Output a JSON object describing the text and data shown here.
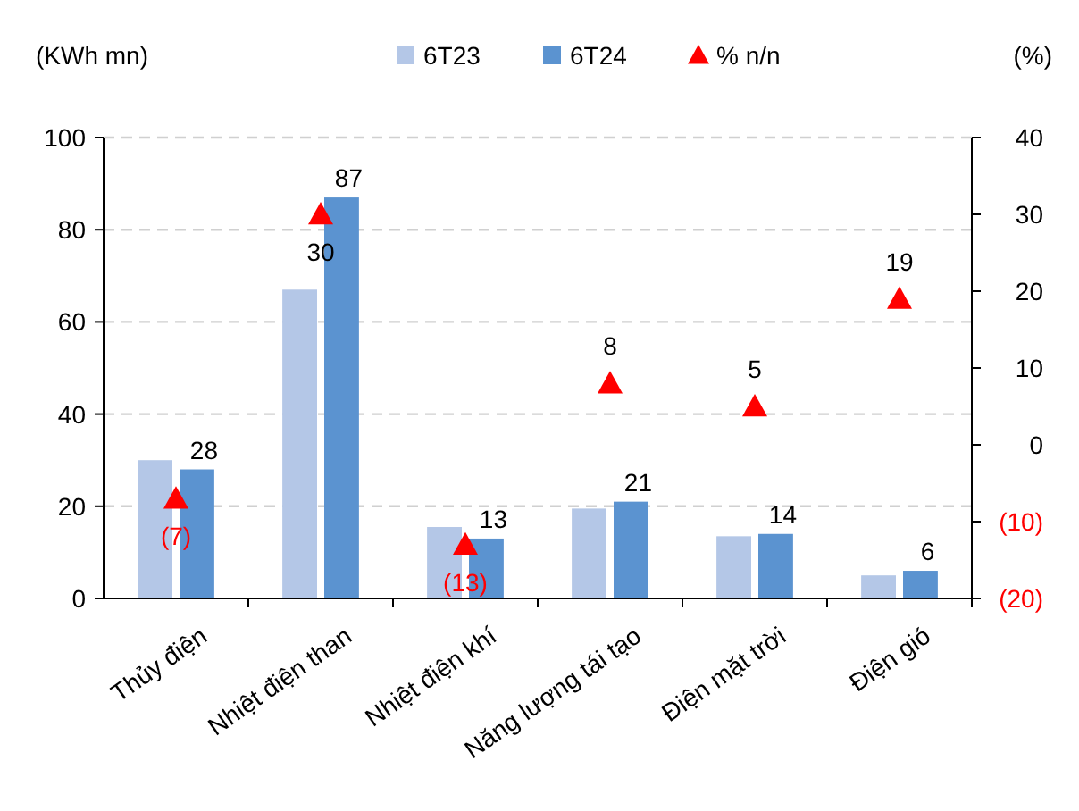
{
  "chart_data": {
    "type": "bar",
    "ylabel": "(KWh mn)",
    "y2label": "(%)",
    "categories": [
      "Thủy điện",
      "Nhiệt điện than",
      "Nhiệt điện khí",
      "Năng lượng tái tạo",
      "Điện mặt trời",
      "Điện gió"
    ],
    "series": [
      {
        "name": "6T23",
        "color": "#b4c7e7",
        "values": [
          30,
          67,
          15.5,
          19.5,
          13.5,
          5
        ]
      },
      {
        "name": "6T24",
        "color": "#5b93d0",
        "values": [
          28,
          87,
          13,
          21,
          14,
          6
        ],
        "value_labels": [
          "28",
          "87",
          "13",
          "21",
          "14",
          "6"
        ]
      },
      {
        "name": "% n/n",
        "type": "scatter",
        "axis": "y2",
        "marker": "triangle",
        "color": "#ff0000",
        "values": [
          -7,
          30,
          -13,
          8,
          5,
          19
        ],
        "value_labels": [
          "(7)",
          "30",
          "(13)",
          "8",
          "5",
          "19"
        ]
      }
    ],
    "ylim": [
      0,
      100
    ],
    "yticks": [
      0,
      20,
      40,
      60,
      80,
      100
    ],
    "y2lim": [
      -20,
      40
    ],
    "y2ticks": [
      {
        "value": -20,
        "label": "(20)"
      },
      {
        "value": -10,
        "label": "(10)"
      },
      0,
      10,
      20,
      30,
      40
    ],
    "grid": "y",
    "legend": "top"
  }
}
